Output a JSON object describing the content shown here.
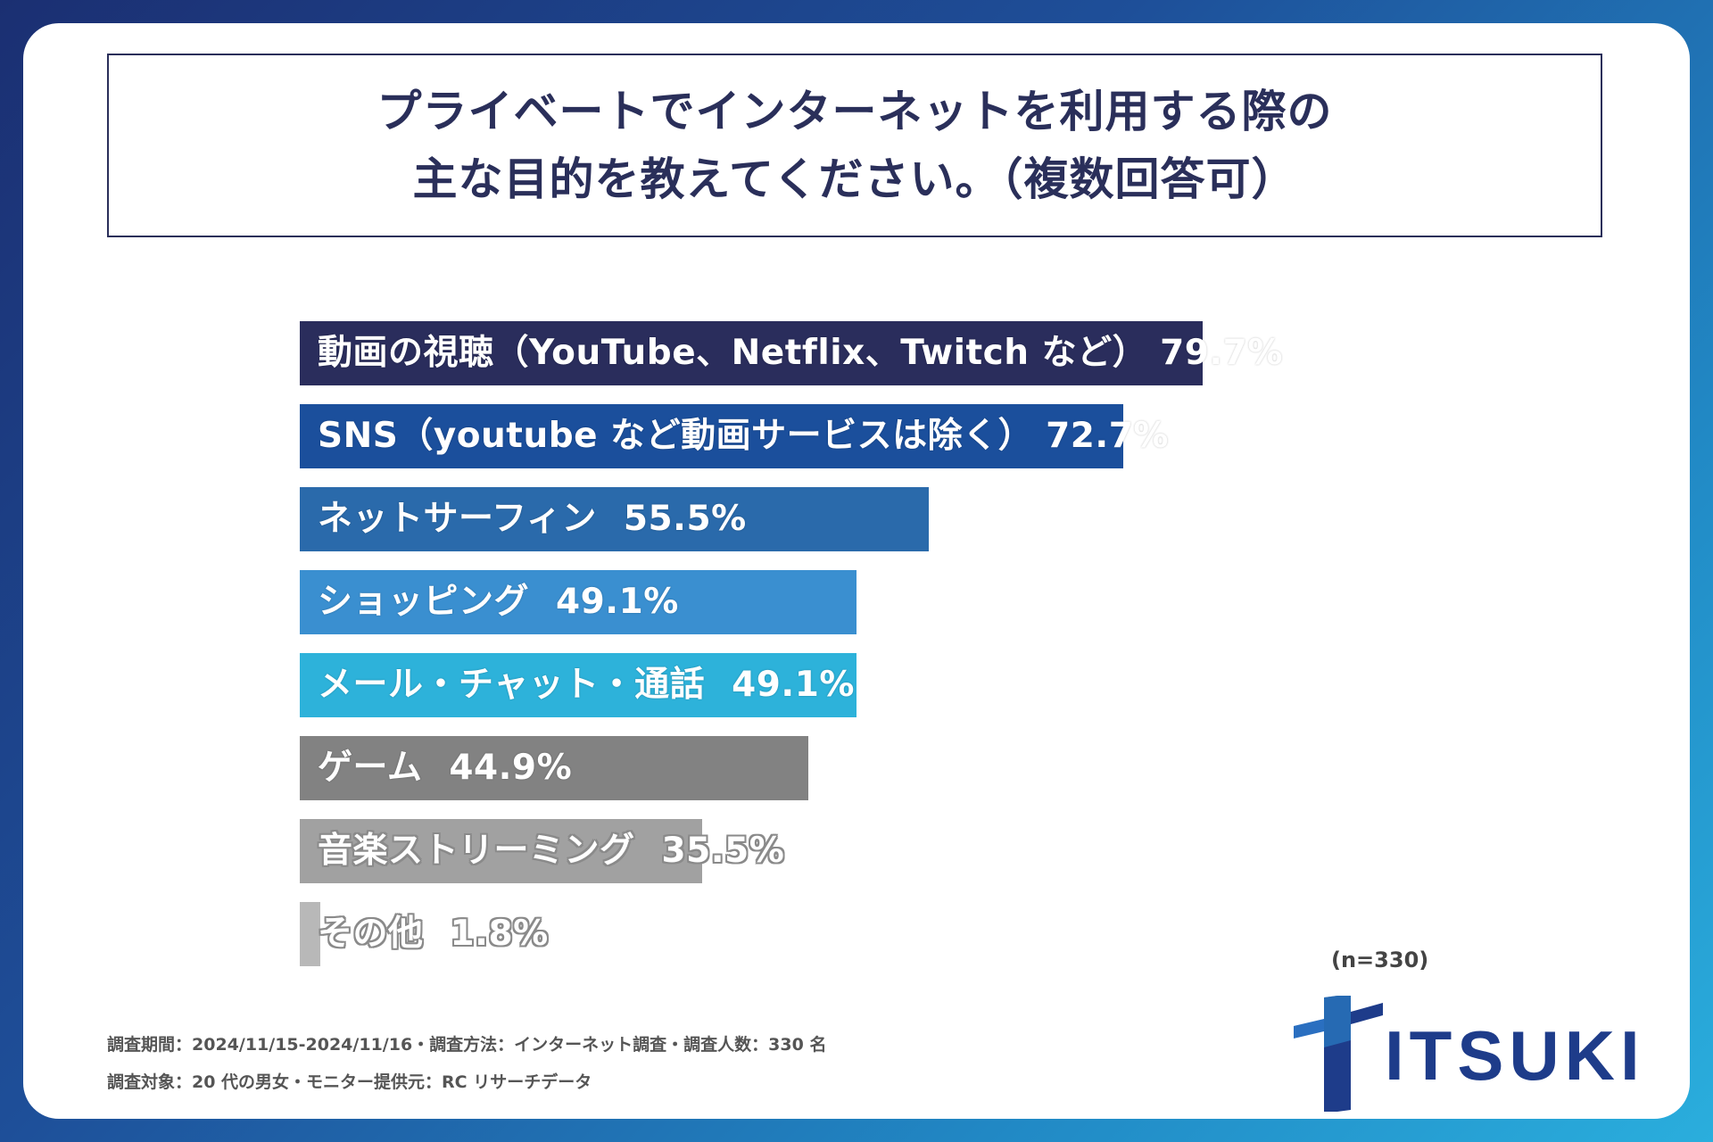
{
  "title": {
    "line1": "プライベートでインターネットを利用する際の",
    "line2": "主な目的を教えてください。（複数回答可）"
  },
  "chart_data": {
    "type": "bar",
    "orientation": "horizontal",
    "title": "プライベートでインターネットを利用する際の主な目的を教えてください。（複数回答可）",
    "unit": "%",
    "xlim": [
      0,
      100
    ],
    "categories": [
      "動画の視聴（YouTube、Netflix、Twitch など）",
      "SNS（youtube など動画サービスは除く）",
      "ネットサーフィン",
      "ショッピング",
      "メール・チャット・通話",
      "ゲーム",
      "音楽ストリーミング",
      "その他"
    ],
    "values": [
      79.7,
      72.7,
      55.5,
      49.1,
      49.1,
      44.9,
      35.5,
      1.8
    ],
    "value_labels": [
      "79.7%",
      "72.7%",
      "55.5%",
      "49.1%",
      "49.1%",
      "44.9%",
      "35.5%",
      "1.8%"
    ],
    "colors": [
      "#2a2d5c",
      "#1b4f9c",
      "#2a6aab",
      "#3a8fd0",
      "#2db2da",
      "#828282",
      "#a1a1a1",
      "#b8b8b8"
    ],
    "n_label": "(n=330)"
  },
  "footnotes": {
    "line1": "調査期間：2024/11/15-2024/11/16・調査方法：インターネット調査・調査人数：330 名",
    "line2": "調査対象：20 代の男女・モニター提供元：RC リサーチデータ"
  },
  "logo": {
    "text": "ITSUKI",
    "color": "#1e3c8a"
  }
}
